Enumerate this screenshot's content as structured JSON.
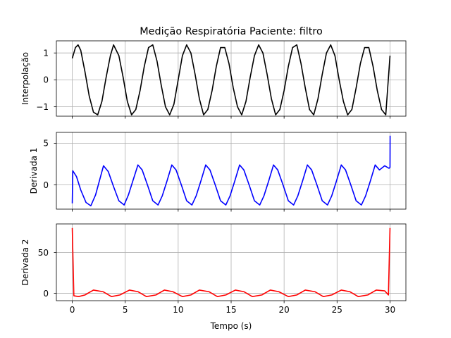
{
  "chart_data": {
    "type": "line",
    "title": "Medição Respiratória Paciente: filtro",
    "xlabel": "Tempo (s)",
    "xlim": [
      -1.5,
      31.5
    ],
    "xticks": [
      0,
      5,
      10,
      15,
      20,
      25,
      30
    ],
    "xtick_labels": [
      "0",
      "5",
      "10",
      "15",
      "20",
      "25",
      "30"
    ],
    "grid": true,
    "subplots": [
      {
        "ylabel": "Interpolação",
        "ylim": [
          -1.35,
          1.45
        ],
        "yticks": [
          1,
          0,
          -1
        ],
        "ytick_labels": [
          "1",
          "0",
          "−1"
        ],
        "series": [
          {
            "color": "#000000",
            "x": [
              0,
              0.3,
              0.55,
              0.8,
              1.2,
              1.6,
              2.0,
              2.4,
              2.8,
              3.2,
              3.6,
              3.9,
              4.4,
              4.8,
              5.2,
              5.6,
              6.0,
              6.4,
              6.8,
              7.2,
              7.6,
              8.0,
              8.4,
              8.8,
              9.2,
              9.6,
              10.0,
              10.4,
              10.8,
              11.2,
              11.6,
              12.0,
              12.4,
              12.8,
              13.2,
              13.6,
              14.0,
              14.4,
              14.8,
              15.2,
              15.6,
              16.0,
              16.4,
              16.8,
              17.2,
              17.6,
              18.0,
              18.4,
              18.8,
              19.2,
              19.6,
              20.0,
              20.4,
              20.8,
              21.2,
              21.6,
              22.0,
              22.4,
              22.8,
              23.2,
              23.6,
              24.0,
              24.4,
              24.8,
              25.2,
              25.6,
              26.0,
              26.4,
              26.8,
              27.2,
              27.6,
              28.0,
              28.4,
              28.8,
              29.2,
              29.6,
              30.0
            ],
            "y": [
              0.8,
              1.2,
              1.3,
              1.1,
              0.3,
              -0.6,
              -1.2,
              -1.3,
              -0.8,
              0.1,
              0.9,
              1.3,
              0.9,
              0.1,
              -0.8,
              -1.3,
              -1.1,
              -0.4,
              0.5,
              1.2,
              1.3,
              0.7,
              -0.2,
              -1.0,
              -1.3,
              -0.9,
              0.0,
              0.9,
              1.3,
              1.0,
              0.2,
              -0.7,
              -1.3,
              -1.1,
              -0.4,
              0.5,
              1.2,
              1.2,
              0.6,
              -0.3,
              -1.0,
              -1.3,
              -0.8,
              0.1,
              0.9,
              1.3,
              1.0,
              0.2,
              -0.7,
              -1.3,
              -1.1,
              -0.4,
              0.5,
              1.2,
              1.3,
              0.6,
              -0.3,
              -1.1,
              -1.3,
              -0.7,
              0.2,
              1.0,
              1.3,
              0.9,
              0.0,
              -0.8,
              -1.3,
              -1.1,
              -0.3,
              0.6,
              1.2,
              1.2,
              0.5,
              -0.4,
              -1.1,
              -1.3,
              0.9
            ]
          }
        ]
      },
      {
        "ylabel": "Derivada 1",
        "ylim": [
          -2.9,
          6.3
        ],
        "yticks": [
          5,
          0
        ],
        "ytick_labels": [
          "5",
          "0"
        ],
        "series": [
          {
            "color": "#0000ff",
            "x": [
              0,
              0.05,
              0.4,
              0.8,
              1.3,
              1.75,
              2.2,
              2.5,
              2.95,
              3.4,
              3.9,
              4.4,
              4.9,
              5.3,
              5.75,
              6.2,
              6.6,
              7.1,
              7.6,
              8.1,
              8.5,
              8.95,
              9.4,
              9.8,
              10.3,
              10.8,
              11.3,
              11.7,
              12.15,
              12.6,
              13.0,
              13.5,
              14.0,
              14.5,
              14.9,
              15.35,
              15.8,
              16.2,
              16.7,
              17.2,
              17.7,
              18.1,
              18.55,
              19.0,
              19.4,
              19.9,
              20.4,
              20.9,
              21.3,
              21.75,
              22.2,
              22.6,
              23.1,
              23.6,
              24.1,
              24.5,
              24.95,
              25.4,
              25.8,
              26.3,
              26.8,
              27.3,
              27.7,
              28.15,
              28.6,
              29.0,
              29.5,
              29.9,
              30.0,
              30.01
            ],
            "y": [
              -2.2,
              1.7,
              1.0,
              -0.6,
              -2.1,
              -2.5,
              -1.2,
              0.2,
              2.3,
              1.6,
              -0.2,
              -1.9,
              -2.4,
              -1.2,
              0.6,
              2.4,
              1.8,
              0.0,
              -1.9,
              -2.4,
              -1.3,
              0.5,
              2.4,
              1.8,
              0.0,
              -1.9,
              -2.4,
              -1.3,
              0.5,
              2.4,
              1.8,
              0.0,
              -1.9,
              -2.4,
              -1.3,
              0.5,
              2.4,
              1.8,
              0.0,
              -1.9,
              -2.4,
              -1.3,
              0.5,
              2.4,
              1.8,
              0.0,
              -1.9,
              -2.4,
              -1.3,
              0.5,
              2.4,
              1.8,
              0.0,
              -1.9,
              -2.4,
              -1.3,
              0.5,
              2.4,
              1.8,
              0.0,
              -1.9,
              -2.4,
              -1.3,
              0.5,
              2.4,
              1.8,
              2.3,
              2.0,
              2.1,
              5.9
            ]
          }
        ]
      },
      {
        "ylabel": "Derivada 2",
        "ylim": [
          -9,
          85
        ],
        "yticks": [
          50,
          0
        ],
        "ytick_labels": [
          "50",
          "0"
        ],
        "series": [
          {
            "color": "#ff0000",
            "x": [
              0,
              0.15,
              0.6,
              1.2,
              2.0,
              2.9,
              3.7,
              4.5,
              5.4,
              6.2,
              7.0,
              7.9,
              8.7,
              9.5,
              10.4,
              11.2,
              12.0,
              12.9,
              13.7,
              14.5,
              15.4,
              16.2,
              17.0,
              17.9,
              18.7,
              19.5,
              20.4,
              21.2,
              22.0,
              22.9,
              23.7,
              24.5,
              25.4,
              26.2,
              27.0,
              27.9,
              28.7,
              29.5,
              29.85,
              30.0
            ],
            "y": [
              80,
              -3,
              -4,
              -2,
              4,
              2,
              -4,
              -2,
              4,
              2,
              -4,
              -2,
              4,
              2,
              -4,
              -2,
              4,
              2,
              -4,
              -2,
              4,
              2,
              -4,
              -2,
              4,
              2,
              -4,
              -2,
              4,
              2,
              -4,
              -2,
              4,
              2,
              -4,
              -2,
              4,
              3,
              -2,
              80
            ]
          }
        ]
      }
    ]
  }
}
